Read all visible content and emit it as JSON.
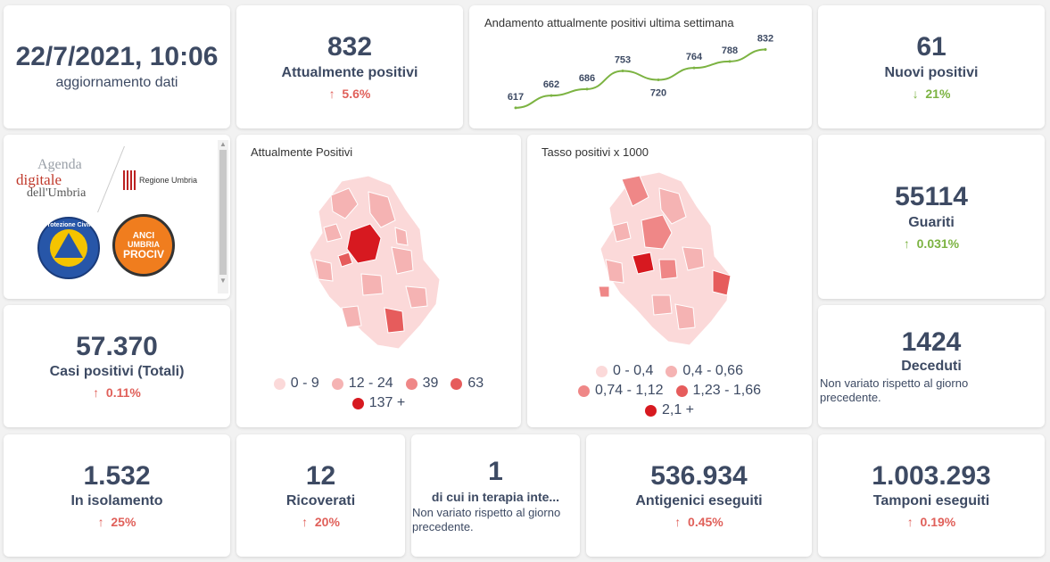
{
  "update": {
    "datetime": "22/7/2021, 10:06",
    "label": "aggiornamento dati"
  },
  "current_positives": {
    "value": "832",
    "label": "Attualmente positivi",
    "delta": "5.6%",
    "direction": "up"
  },
  "trend": {
    "title": "Andamento attualmente positivi ultima settimana",
    "color": "#7cb342",
    "chart_data": {
      "type": "line",
      "title": "Andamento attualmente positivi ultima settimana",
      "x": [
        1,
        2,
        3,
        4,
        5,
        6,
        7,
        8
      ],
      "values": [
        617,
        662,
        686,
        753,
        720,
        764,
        788,
        832
      ],
      "labels": [
        "617",
        "662",
        "686",
        "753",
        "720",
        "764",
        "788",
        "832"
      ],
      "ylim": [
        600,
        850
      ],
      "grid": false
    }
  },
  "new_positives": {
    "value": "61",
    "label": "Nuovi positivi",
    "delta": "21%",
    "direction": "down"
  },
  "logos": {
    "agenda_line1": "Agenda",
    "agenda_line2": "digitale",
    "agenda_line3": "dell'Umbria",
    "regione": "Regione Umbria",
    "protezione": "Protezione Civile",
    "anci1": "ANCI",
    "anci2": "UMBRIA",
    "anci3": "PROCIV"
  },
  "map_positives": {
    "title": "Attualmente Positivi",
    "legend": [
      {
        "label": "0 - 9",
        "color": "#fbd9d9"
      },
      {
        "label": "12 - 24",
        "color": "#f5b3b3"
      },
      {
        "label": "39",
        "color": "#ef8787"
      },
      {
        "label": "63",
        "color": "#e65c5c"
      },
      {
        "label": "137 +",
        "color": "#d71920"
      }
    ]
  },
  "map_rate": {
    "title": "Tasso positivi x 1000",
    "legend": [
      {
        "label": "0 - 0,4",
        "color": "#fbd9d9"
      },
      {
        "label": "0,4 - 0,66",
        "color": "#f5b3b3"
      },
      {
        "label": "0,74 - 1,12",
        "color": "#ef8787"
      },
      {
        "label": "1,23 - 1,66",
        "color": "#e65c5c"
      },
      {
        "label": "2,1 +",
        "color": "#d71920"
      }
    ]
  },
  "recovered": {
    "value": "55114",
    "label": "Guariti",
    "delta": "0.031%",
    "direction": "up-green"
  },
  "total_cases": {
    "value": "57.370",
    "label": "Casi positivi (Totali)",
    "delta": "0.11%",
    "direction": "up"
  },
  "deaths": {
    "value": "1424",
    "label": "Deceduti",
    "note": "Non variato rispetto al giorno precedente."
  },
  "isolation": {
    "value": "1.532",
    "label": "In isolamento",
    "delta": "25%",
    "direction": "up"
  },
  "hospitalized": {
    "value": "12",
    "label": "Ricoverati",
    "delta": "20%",
    "direction": "up"
  },
  "icu": {
    "value": "1",
    "label": "di cui in terapia inte...",
    "note": "Non variato rispetto al giorno precedente."
  },
  "antigen": {
    "value": "536.934",
    "label": "Antigenici eseguiti",
    "delta": "0.45%",
    "direction": "up"
  },
  "swabs": {
    "value": "1.003.293",
    "label": "Tamponi eseguiti",
    "delta": "0.19%",
    "direction": "up"
  }
}
